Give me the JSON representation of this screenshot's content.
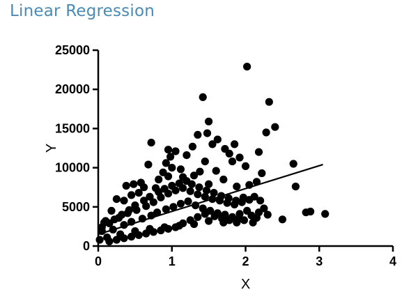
{
  "page": {
    "title": "Linear Regression"
  },
  "colors": {
    "title": "#4a8ab3",
    "marks": "#000000",
    "background": "#ffffff"
  },
  "chart_data": {
    "type": "scatter",
    "title": "",
    "xlabel": "X",
    "ylabel": "Y",
    "xlim": [
      0,
      4
    ],
    "ylim": [
      0,
      25000
    ],
    "x_ticks": [
      "0",
      "1",
      "2",
      "3",
      "4"
    ],
    "y_ticks": [
      "0",
      "5000",
      "10000",
      "15000",
      "20000",
      "25000"
    ],
    "grid": false,
    "legend": "none",
    "regression_line": {
      "x": [
        0.0,
        3.05
      ],
      "y": [
        1500,
        10400
      ]
    },
    "points": [
      [
        2.02,
        22900
      ],
      [
        1.42,
        19000
      ],
      [
        2.32,
        18400
      ],
      [
        1.5,
        15900
      ],
      [
        2.4,
        15200
      ],
      [
        2.28,
        14500
      ],
      [
        1.48,
        14400
      ],
      [
        1.62,
        13600
      ],
      [
        1.35,
        14200
      ],
      [
        1.55,
        13000
      ],
      [
        1.85,
        13000
      ],
      [
        0.72,
        13200
      ],
      [
        1.72,
        12400
      ],
      [
        1.92,
        11300
      ],
      [
        2.18,
        12000
      ],
      [
        1.28,
        12700
      ],
      [
        0.95,
        12300
      ],
      [
        1.78,
        11800
      ],
      [
        1.2,
        11600
      ],
      [
        1.05,
        12100
      ],
      [
        2.65,
        10500
      ],
      [
        2.22,
        9300
      ],
      [
        2.0,
        10200
      ],
      [
        1.6,
        9600
      ],
      [
        1.38,
        9500
      ],
      [
        1.12,
        9800
      ],
      [
        0.88,
        9400
      ],
      [
        0.92,
        10600
      ],
      [
        1.0,
        10000
      ],
      [
        0.98,
        11400
      ],
      [
        1.45,
        10800
      ],
      [
        1.82,
        10800
      ],
      [
        0.68,
        10400
      ],
      [
        0.82,
        8500
      ],
      [
        0.95,
        8900
      ],
      [
        1.15,
        8800
      ],
      [
        1.3,
        9000
      ],
      [
        2.68,
        7600
      ],
      [
        2.15,
        8200
      ],
      [
        2.05,
        7800
      ],
      [
        1.88,
        7600
      ],
      [
        1.7,
        8500
      ],
      [
        1.5,
        7900
      ],
      [
        0.58,
        8100
      ],
      [
        0.48,
        7900
      ],
      [
        0.38,
        7700
      ],
      [
        0.62,
        7500
      ],
      [
        0.78,
        7400
      ],
      [
        0.55,
        6800
      ],
      [
        0.45,
        6500
      ],
      [
        0.25,
        6000
      ],
      [
        0.35,
        5800
      ],
      [
        0.18,
        4500
      ],
      [
        0.1,
        3200
      ],
      [
        0.05,
        2400
      ],
      [
        0.15,
        2900
      ],
      [
        0.28,
        3600
      ],
      [
        0.4,
        4200
      ],
      [
        0.52,
        4600
      ],
      [
        0.65,
        5100
      ],
      [
        0.75,
        5600
      ],
      [
        0.85,
        6200
      ],
      [
        0.95,
        6700
      ],
      [
        1.05,
        7100
      ],
      [
        1.15,
        7400
      ],
      [
        1.25,
        7000
      ],
      [
        1.35,
        6600
      ],
      [
        1.45,
        6300
      ],
      [
        1.55,
        6000
      ],
      [
        1.65,
        5800
      ],
      [
        1.75,
        5500
      ],
      [
        1.85,
        5300
      ],
      [
        1.95,
        5600
      ],
      [
        2.05,
        5900
      ],
      [
        2.12,
        6300
      ],
      [
        2.2,
        5800
      ],
      [
        2.25,
        4800
      ],
      [
        2.3,
        4000
      ],
      [
        2.82,
        4300
      ],
      [
        2.88,
        4400
      ],
      [
        3.08,
        4100
      ],
      [
        2.5,
        3400
      ],
      [
        2.1,
        3000
      ],
      [
        1.9,
        3400
      ],
      [
        1.7,
        3000
      ],
      [
        1.5,
        3200
      ],
      [
        1.3,
        2800
      ],
      [
        1.1,
        2600
      ],
      [
        0.9,
        2400
      ],
      [
        0.7,
        2200
      ],
      [
        0.5,
        1900
      ],
      [
        0.3,
        1500
      ],
      [
        0.12,
        1100
      ],
      [
        0.02,
        800
      ],
      [
        0.05,
        1900
      ],
      [
        0.2,
        2100
      ],
      [
        0.35,
        2700
      ],
      [
        0.45,
        3100
      ],
      [
        0.6,
        3500
      ],
      [
        0.72,
        3900
      ],
      [
        0.8,
        4300
      ],
      [
        0.92,
        4700
      ],
      [
        1.02,
        5000
      ],
      [
        1.12,
        5400
      ],
      [
        1.22,
        5700
      ],
      [
        1.32,
        5200
      ],
      [
        1.42,
        4800
      ],
      [
        1.52,
        4500
      ],
      [
        1.62,
        4200
      ],
      [
        1.72,
        4000
      ],
      [
        1.82,
        3700
      ],
      [
        1.92,
        4100
      ],
      [
        2.02,
        4500
      ],
      [
        2.08,
        3900
      ],
      [
        2.15,
        3600
      ],
      [
        0.15,
        600
      ],
      [
        0.25,
        800
      ],
      [
        0.35,
        1000
      ],
      [
        0.45,
        1200
      ],
      [
        0.55,
        1400
      ],
      [
        0.65,
        1600
      ],
      [
        0.75,
        1800
      ],
      [
        0.85,
        2000
      ],
      [
        0.95,
        2200
      ],
      [
        1.05,
        2400
      ],
      [
        1.15,
        2900
      ],
      [
        1.25,
        3300
      ],
      [
        1.35,
        3700
      ],
      [
        1.45,
        4100
      ],
      [
        1.58,
        3800
      ],
      [
        1.68,
        3500
      ],
      [
        1.78,
        3300
      ],
      [
        1.88,
        3000
      ],
      [
        1.98,
        3300
      ],
      [
        2.18,
        4300
      ],
      [
        0.08,
        3000
      ],
      [
        0.22,
        3400
      ],
      [
        0.32,
        4000
      ],
      [
        0.42,
        4600
      ],
      [
        0.5,
        5200
      ],
      [
        0.62,
        5800
      ],
      [
        0.7,
        6300
      ],
      [
        0.82,
        6900
      ],
      [
        0.9,
        7300
      ],
      [
        1.0,
        7700
      ],
      [
        1.1,
        8000
      ],
      [
        1.2,
        8300
      ],
      [
        1.27,
        7900
      ],
      [
        1.37,
        7500
      ],
      [
        1.47,
        7100
      ],
      [
        1.57,
        6800
      ],
      [
        1.67,
        6400
      ],
      [
        1.77,
        6100
      ],
      [
        1.87,
        5800
      ],
      [
        1.97,
        6200
      ]
    ]
  }
}
